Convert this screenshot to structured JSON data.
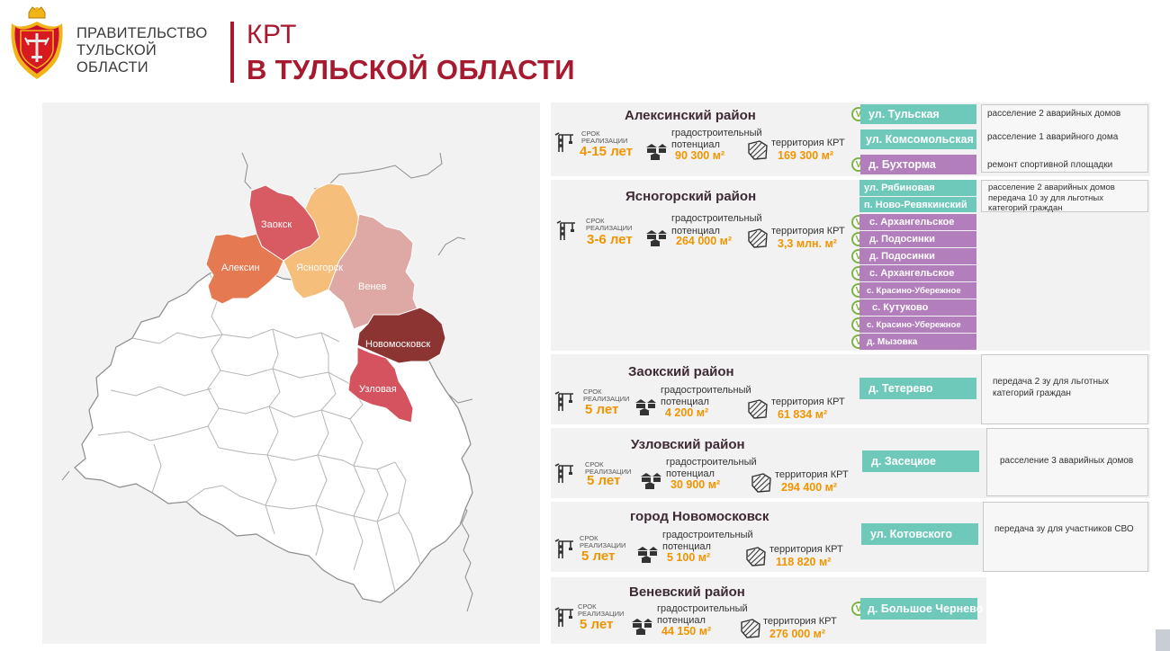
{
  "header": {
    "gov_lines": [
      "ПРАВИТЕЛЬСТВО",
      "ТУЛЬСКОЙ",
      "ОБЛАСТИ"
    ],
    "title_line1": "КРТ",
    "title_line2": "В ТУЛЬСКОЙ ОБЛАСТИ"
  },
  "colors": {
    "brand": "#a6192e",
    "accent_value": "#f29400",
    "teal": "#6fc9bb",
    "purple": "#b27fbc",
    "aleksin": "#e57a52",
    "zaoksk": "#d85a63",
    "yasnogorsk": "#f5bf7b",
    "venev": "#dea9a4",
    "novomoskovsk": "#8c3432",
    "uzlovaya": "#d5535f"
  },
  "map": {
    "labels": {
      "zaoksk": "Заокск",
      "aleksin": "Алексин",
      "yasnogorsk": "Ясногорск",
      "venev": "Венев",
      "novomoskovsk": "Новомосковск",
      "uzlovaya": "Узловая"
    }
  },
  "common": {
    "srok_line1": "СРОК",
    "srok_line2": "РЕАЛИЗАЦИИ",
    "pot_line1": "градостроительный",
    "pot_line2": "потенциал",
    "terr_label": "территория КРТ"
  },
  "blocks": [
    {
      "title": "Алексинский район",
      "srok": "4-15 лет",
      "potential": "90 300 м²",
      "territory": "169 300 м²",
      "locations": [
        {
          "name": "ул. Тульская",
          "check": true
        },
        {
          "name": "ул. Комсомольская",
          "check": false
        },
        {
          "name": "д. Бухторма",
          "check": true
        }
      ],
      "notes": [
        "расселение 2 аварийных домов",
        "расселение 1 аварийного дома",
        "ремонт спортивной площадки"
      ]
    },
    {
      "title": "Ясногорский район",
      "srok": "3-6 лет",
      "potential": "264 000 м²",
      "territory": "3,3 млн. м²",
      "locations": [
        {
          "name": "ул. Рябиновая",
          "check": false
        },
        {
          "name": "п. Ново-Ревякинский",
          "check": false
        },
        {
          "name": "с. Архангельское",
          "check": true
        },
        {
          "name": "д. Подосинки",
          "check": true
        },
        {
          "name": "д. Подосинки",
          "check": true
        },
        {
          "name": "с. Архангельское",
          "check": true
        },
        {
          "name": "с. Красино-Убережное",
          "check": true
        },
        {
          "name": "с. Кутуково",
          "check": true
        },
        {
          "name": "с. Красино-Убережное",
          "check": true
        },
        {
          "name": "д. Мызовка",
          "check": true
        }
      ],
      "notes": [
        "расселение 2 аварийных домов",
        "передача 10 зу для льготных",
        "категорий граждан"
      ]
    },
    {
      "title": "Заокский район",
      "srok": "5 лет",
      "potential": "4 200 м²",
      "territory": "61 834 м²",
      "locations": [
        {
          "name": "д. Тетерево",
          "check": false
        }
      ],
      "notes": [
        "передача 2 зу для льготных",
        "категорий граждан"
      ]
    },
    {
      "title": "Узловский район",
      "srok": "5 лет",
      "potential": "30 900 м²",
      "territory": "294 400 м²",
      "locations": [
        {
          "name": "д. Засецкое",
          "check": false
        }
      ],
      "notes": [
        "расселение 3 аварийных домов"
      ]
    },
    {
      "title": "город Новомосковск",
      "srok": "5 лет",
      "potential": "5 100 м²",
      "territory": "118 820 м²",
      "locations": [
        {
          "name": "ул. Котовского",
          "check": false
        }
      ],
      "notes": [
        "передача зу для участников СВО"
      ]
    },
    {
      "title": "Веневский район",
      "srok": "5 лет",
      "potential": "44 150 м²",
      "territory": "276 000 м²",
      "locations": [
        {
          "name": "д. Большое Чернево",
          "check": true
        }
      ],
      "notes": []
    }
  ]
}
